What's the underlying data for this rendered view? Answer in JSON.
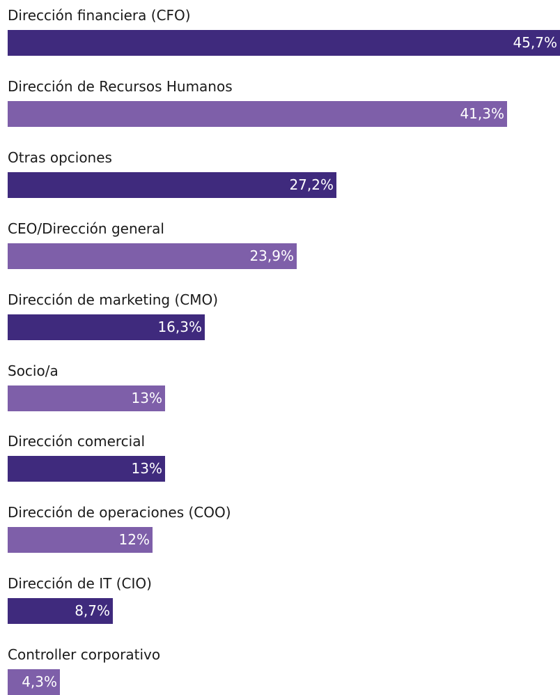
{
  "chart_data": {
    "type": "bar",
    "orientation": "horizontal",
    "title": "",
    "xlabel": "",
    "ylabel": "",
    "xlim": [
      0,
      45.7
    ],
    "grid": false,
    "colors": [
      "#3f2a7d",
      "#7e5fa9"
    ],
    "categories": [
      "Dirección financiera (CFO)",
      "Dirección de Recursos Humanos",
      "Otras opciones",
      "CEO/Dirección general",
      "Dirección de marketing (CMO)",
      "Socio/a",
      "Dirección comercial",
      "Dirección de operaciones (COO)",
      "Dirección de IT (CIO)",
      "Controller corporativo"
    ],
    "values": [
      45.7,
      41.3,
      27.2,
      23.9,
      16.3,
      13,
      13,
      12,
      8.7,
      4.3
    ],
    "value_labels": [
      "45,7%",
      "41,3%",
      "27,2%",
      "23,9%",
      "16,3%",
      "13%",
      "13%",
      "12%",
      "8,7%",
      "4,3%"
    ]
  }
}
